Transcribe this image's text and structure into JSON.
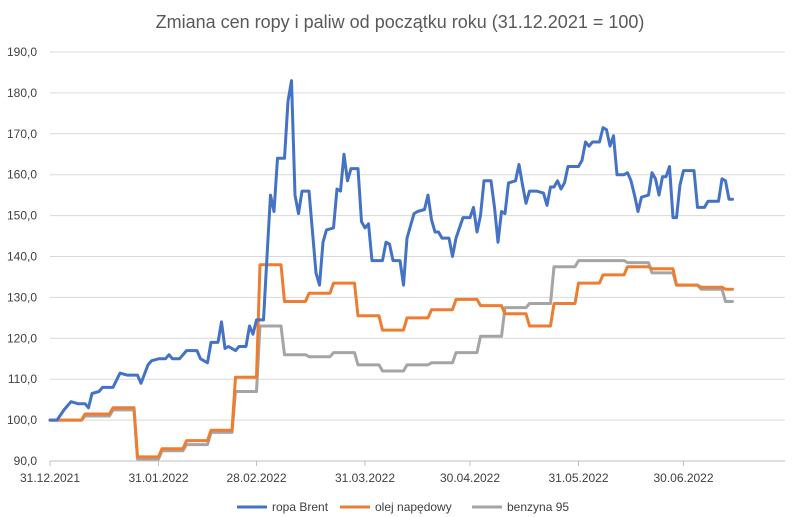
{
  "chart_data": {
    "type": "line",
    "title": "Zmiana cen ropy i paliw od początku roku (31.12.2021 = 100)",
    "xlabel": "",
    "ylabel": "",
    "ylim": [
      90,
      190
    ],
    "yticks": [
      "90,0",
      "100,0",
      "110,0",
      "120,0",
      "130,0",
      "140,0",
      "150,0",
      "160,0",
      "170,0",
      "180,0",
      "190,0"
    ],
    "xlim": [
      "2021-12-31",
      "2022-07-29"
    ],
    "xticks": [
      {
        "date": "2021-12-31",
        "label": "31.12.2021"
      },
      {
        "date": "2022-01-31",
        "label": "31.01.2022"
      },
      {
        "date": "2022-02-28",
        "label": "28.02.2022"
      },
      {
        "date": "2022-03-31",
        "label": "31.03.2022"
      },
      {
        "date": "2022-04-30",
        "label": "30.04.2022"
      },
      {
        "date": "2022-05-31",
        "label": "31.05.2022"
      },
      {
        "date": "2022-06-30",
        "label": "30.06.2022"
      }
    ],
    "legend_position": "bottom",
    "grid": true,
    "series": [
      {
        "name": "ropa Brent",
        "color": "#4472c4",
        "points": [
          [
            "2021-12-31",
            100.0
          ],
          [
            "2022-01-02",
            100.0
          ],
          [
            "2022-01-04",
            102.5
          ],
          [
            "2022-01-06",
            104.5
          ],
          [
            "2022-01-08",
            104.0
          ],
          [
            "2022-01-10",
            104.0
          ],
          [
            "2022-01-11",
            103.0
          ],
          [
            "2022-01-12",
            106.5
          ],
          [
            "2022-01-14",
            107.0
          ],
          [
            "2022-01-15",
            108.0
          ],
          [
            "2022-01-18",
            108.0
          ],
          [
            "2022-01-20",
            111.5
          ],
          [
            "2022-01-22",
            111.0
          ],
          [
            "2022-01-25",
            111.0
          ],
          [
            "2022-01-26",
            109.0
          ],
          [
            "2022-01-28",
            113.5
          ],
          [
            "2022-01-29",
            114.5
          ],
          [
            "2022-01-31",
            115.0
          ],
          [
            "2022-02-02",
            115.0
          ],
          [
            "2022-02-03",
            116.0
          ],
          [
            "2022-02-04",
            115.0
          ],
          [
            "2022-02-06",
            115.0
          ],
          [
            "2022-02-08",
            117.0
          ],
          [
            "2022-02-11",
            117.0
          ],
          [
            "2022-02-12",
            115.0
          ],
          [
            "2022-02-14",
            114.0
          ],
          [
            "2022-02-15",
            119.0
          ],
          [
            "2022-02-17",
            119.0
          ],
          [
            "2022-02-18",
            124.0
          ],
          [
            "2022-02-19",
            117.5
          ],
          [
            "2022-02-20",
            118.0
          ],
          [
            "2022-02-22",
            117.0
          ],
          [
            "2022-02-23",
            118.0
          ],
          [
            "2022-02-25",
            118.0
          ],
          [
            "2022-02-26",
            123.0
          ],
          [
            "2022-02-27",
            121.0
          ],
          [
            "2022-02-28",
            124.5
          ],
          [
            "2022-03-02",
            124.5
          ],
          [
            "2022-03-03",
            140.0
          ],
          [
            "2022-03-04",
            155.0
          ],
          [
            "2022-03-05",
            151.0
          ],
          [
            "2022-03-06",
            164.0
          ],
          [
            "2022-03-08",
            164.0
          ],
          [
            "2022-03-09",
            178.0
          ],
          [
            "2022-03-10",
            183.0
          ],
          [
            "2022-03-11",
            155.0
          ],
          [
            "2022-03-12",
            150.5
          ],
          [
            "2022-03-13",
            156.0
          ],
          [
            "2022-03-15",
            156.0
          ],
          [
            "2022-03-16",
            146.0
          ],
          [
            "2022-03-17",
            136.0
          ],
          [
            "2022-03-18",
            133.0
          ],
          [
            "2022-03-19",
            143.5
          ],
          [
            "2022-03-20",
            146.5
          ],
          [
            "2022-03-22",
            147.0
          ],
          [
            "2022-03-23",
            156.5
          ],
          [
            "2022-03-24",
            156.0
          ],
          [
            "2022-03-25",
            165.0
          ],
          [
            "2022-03-26",
            158.5
          ],
          [
            "2022-03-27",
            161.5
          ],
          [
            "2022-03-29",
            161.5
          ],
          [
            "2022-03-30",
            148.5
          ],
          [
            "2022-03-31",
            147.0
          ],
          [
            "2022-04-01",
            148.0
          ],
          [
            "2022-04-02",
            139.0
          ],
          [
            "2022-04-05",
            139.0
          ],
          [
            "2022-04-06",
            143.5
          ],
          [
            "2022-04-07",
            143.0
          ],
          [
            "2022-04-08",
            139.0
          ],
          [
            "2022-04-10",
            139.0
          ],
          [
            "2022-04-11",
            133.0
          ],
          [
            "2022-04-12",
            144.5
          ],
          [
            "2022-04-14",
            150.5
          ],
          [
            "2022-04-15",
            151.0
          ],
          [
            "2022-04-17",
            151.5
          ],
          [
            "2022-04-18",
            155.0
          ],
          [
            "2022-04-19",
            149.0
          ],
          [
            "2022-04-20",
            146.0
          ],
          [
            "2022-04-21",
            146.0
          ],
          [
            "2022-04-22",
            144.5
          ],
          [
            "2022-04-24",
            144.5
          ],
          [
            "2022-04-25",
            140.0
          ],
          [
            "2022-04-26",
            144.5
          ],
          [
            "2022-04-28",
            149.5
          ],
          [
            "2022-04-30",
            149.5
          ],
          [
            "2022-05-01",
            152.0
          ],
          [
            "2022-05-02",
            146.0
          ],
          [
            "2022-05-03",
            150.0
          ],
          [
            "2022-05-04",
            158.5
          ],
          [
            "2022-05-06",
            158.5
          ],
          [
            "2022-05-07",
            152.0
          ],
          [
            "2022-05-08",
            143.5
          ],
          [
            "2022-05-09",
            151.0
          ],
          [
            "2022-05-10",
            150.5
          ],
          [
            "2022-05-11",
            158.0
          ],
          [
            "2022-05-13",
            158.5
          ],
          [
            "2022-05-14",
            162.5
          ],
          [
            "2022-05-15",
            157.5
          ],
          [
            "2022-05-16",
            153.0
          ],
          [
            "2022-05-17",
            156.0
          ],
          [
            "2022-05-19",
            156.0
          ],
          [
            "2022-05-21",
            155.5
          ],
          [
            "2022-05-22",
            152.5
          ],
          [
            "2022-05-23",
            157.0
          ],
          [
            "2022-05-24",
            157.0
          ],
          [
            "2022-05-25",
            158.5
          ],
          [
            "2022-05-26",
            156.5
          ],
          [
            "2022-05-27",
            158.0
          ],
          [
            "2022-05-28",
            162.0
          ],
          [
            "2022-05-31",
            162.0
          ],
          [
            "2022-06-01",
            163.5
          ],
          [
            "2022-06-02",
            168.0
          ],
          [
            "2022-06-03",
            167.0
          ],
          [
            "2022-06-04",
            168.0
          ],
          [
            "2022-06-06",
            168.0
          ],
          [
            "2022-06-07",
            171.5
          ],
          [
            "2022-06-08",
            171.0
          ],
          [
            "2022-06-09",
            167.0
          ],
          [
            "2022-06-10",
            169.5
          ],
          [
            "2022-06-11",
            160.0
          ],
          [
            "2022-06-13",
            160.0
          ],
          [
            "2022-06-14",
            160.5
          ],
          [
            "2022-06-15",
            158.5
          ],
          [
            "2022-06-16",
            155.0
          ],
          [
            "2022-06-17",
            151.0
          ],
          [
            "2022-06-18",
            154.5
          ],
          [
            "2022-06-20",
            155.0
          ],
          [
            "2022-06-21",
            160.5
          ],
          [
            "2022-06-22",
            159.0
          ],
          [
            "2022-06-23",
            155.0
          ],
          [
            "2022-06-24",
            159.5
          ],
          [
            "2022-06-25",
            159.5
          ],
          [
            "2022-06-26",
            162.0
          ],
          [
            "2022-06-27",
            149.5
          ],
          [
            "2022-06-28",
            149.5
          ],
          [
            "2022-06-29",
            157.5
          ],
          [
            "2022-06-30",
            161.0
          ],
          [
            "2022-07-03",
            161.0
          ],
          [
            "2022-07-04",
            152.0
          ],
          [
            "2022-07-06",
            152.0
          ],
          [
            "2022-07-07",
            153.5
          ],
          [
            "2022-07-10",
            153.5
          ],
          [
            "2022-07-11",
            159.0
          ],
          [
            "2022-07-12",
            158.5
          ],
          [
            "2022-07-13",
            154.0
          ],
          [
            "2022-07-14",
            154.0
          ]
        ]
      },
      {
        "name": "olej napędowy",
        "color": "#ed7d31",
        "points": [
          [
            "2021-12-31",
            100.0
          ],
          [
            "2022-01-09",
            100.0
          ],
          [
            "2022-01-10",
            101.5
          ],
          [
            "2022-01-17",
            101.5
          ],
          [
            "2022-01-18",
            103.0
          ],
          [
            "2022-01-24",
            103.0
          ],
          [
            "2022-01-25",
            91.0
          ],
          [
            "2022-01-31",
            91.0
          ],
          [
            "2022-02-01",
            93.0
          ],
          [
            "2022-02-07",
            93.0
          ],
          [
            "2022-02-08",
            95.0
          ],
          [
            "2022-02-14",
            95.0
          ],
          [
            "2022-02-15",
            97.5
          ],
          [
            "2022-02-21",
            97.5
          ],
          [
            "2022-02-22",
            110.5
          ],
          [
            "2022-02-28",
            110.5
          ],
          [
            "2022-03-01",
            138.0
          ],
          [
            "2022-03-07",
            138.0
          ],
          [
            "2022-03-08",
            129.0
          ],
          [
            "2022-03-14",
            129.0
          ],
          [
            "2022-03-15",
            131.0
          ],
          [
            "2022-03-21",
            131.0
          ],
          [
            "2022-03-22",
            133.5
          ],
          [
            "2022-03-28",
            133.5
          ],
          [
            "2022-03-29",
            125.5
          ],
          [
            "2022-04-04",
            125.5
          ],
          [
            "2022-04-05",
            122.0
          ],
          [
            "2022-04-11",
            122.0
          ],
          [
            "2022-04-12",
            125.0
          ],
          [
            "2022-04-18",
            125.0
          ],
          [
            "2022-04-19",
            127.0
          ],
          [
            "2022-04-25",
            127.0
          ],
          [
            "2022-04-26",
            129.5
          ],
          [
            "2022-05-02",
            129.5
          ],
          [
            "2022-05-03",
            128.0
          ],
          [
            "2022-05-09",
            128.0
          ],
          [
            "2022-05-10",
            126.0
          ],
          [
            "2022-05-16",
            126.0
          ],
          [
            "2022-05-17",
            123.0
          ],
          [
            "2022-05-23",
            123.0
          ],
          [
            "2022-05-24",
            128.5
          ],
          [
            "2022-05-30",
            128.5
          ],
          [
            "2022-05-31",
            133.5
          ],
          [
            "2022-06-06",
            133.5
          ],
          [
            "2022-06-07",
            135.5
          ],
          [
            "2022-06-13",
            135.5
          ],
          [
            "2022-06-14",
            137.5
          ],
          [
            "2022-06-20",
            137.5
          ],
          [
            "2022-06-21",
            137.0
          ],
          [
            "2022-06-27",
            137.0
          ],
          [
            "2022-06-28",
            133.0
          ],
          [
            "2022-07-04",
            133.0
          ],
          [
            "2022-07-05",
            132.5
          ],
          [
            "2022-07-11",
            132.5
          ],
          [
            "2022-07-12",
            132.0
          ],
          [
            "2022-07-14",
            132.0
          ]
        ]
      },
      {
        "name": "benzyna 95",
        "color": "#a5a5a5",
        "points": [
          [
            "2021-12-31",
            100.0
          ],
          [
            "2022-01-09",
            100.0
          ],
          [
            "2022-01-10",
            101.0
          ],
          [
            "2022-01-17",
            101.0
          ],
          [
            "2022-01-18",
            102.5
          ],
          [
            "2022-01-24",
            102.5
          ],
          [
            "2022-01-25",
            90.5
          ],
          [
            "2022-01-31",
            90.5
          ],
          [
            "2022-02-01",
            92.5
          ],
          [
            "2022-02-07",
            92.5
          ],
          [
            "2022-02-08",
            94.0
          ],
          [
            "2022-02-14",
            94.0
          ],
          [
            "2022-02-15",
            97.0
          ],
          [
            "2022-02-21",
            97.0
          ],
          [
            "2022-02-22",
            107.0
          ],
          [
            "2022-02-28",
            107.0
          ],
          [
            "2022-03-01",
            123.0
          ],
          [
            "2022-03-07",
            123.0
          ],
          [
            "2022-03-08",
            116.0
          ],
          [
            "2022-03-14",
            116.0
          ],
          [
            "2022-03-15",
            115.5
          ],
          [
            "2022-03-21",
            115.5
          ],
          [
            "2022-03-22",
            116.5
          ],
          [
            "2022-03-28",
            116.5
          ],
          [
            "2022-03-29",
            113.5
          ],
          [
            "2022-04-04",
            113.5
          ],
          [
            "2022-04-05",
            112.0
          ],
          [
            "2022-04-11",
            112.0
          ],
          [
            "2022-04-12",
            113.5
          ],
          [
            "2022-04-18",
            113.5
          ],
          [
            "2022-04-19",
            114.0
          ],
          [
            "2022-04-25",
            114.0
          ],
          [
            "2022-04-26",
            116.5
          ],
          [
            "2022-05-02",
            116.5
          ],
          [
            "2022-05-03",
            120.5
          ],
          [
            "2022-05-09",
            120.5
          ],
          [
            "2022-05-10",
            127.5
          ],
          [
            "2022-05-16",
            127.5
          ],
          [
            "2022-05-17",
            128.5
          ],
          [
            "2022-05-23",
            128.5
          ],
          [
            "2022-05-24",
            137.5
          ],
          [
            "2022-05-30",
            137.5
          ],
          [
            "2022-05-31",
            139.0
          ],
          [
            "2022-06-06",
            139.0
          ],
          [
            "2022-06-07",
            139.0
          ],
          [
            "2022-06-13",
            139.0
          ],
          [
            "2022-06-14",
            138.5
          ],
          [
            "2022-06-20",
            138.5
          ],
          [
            "2022-06-21",
            136.0
          ],
          [
            "2022-06-27",
            136.0
          ],
          [
            "2022-06-28",
            133.0
          ],
          [
            "2022-07-04",
            133.0
          ],
          [
            "2022-07-05",
            132.0
          ],
          [
            "2022-07-11",
            132.0
          ],
          [
            "2022-07-12",
            129.0
          ],
          [
            "2022-07-14",
            129.0
          ]
        ]
      }
    ]
  }
}
